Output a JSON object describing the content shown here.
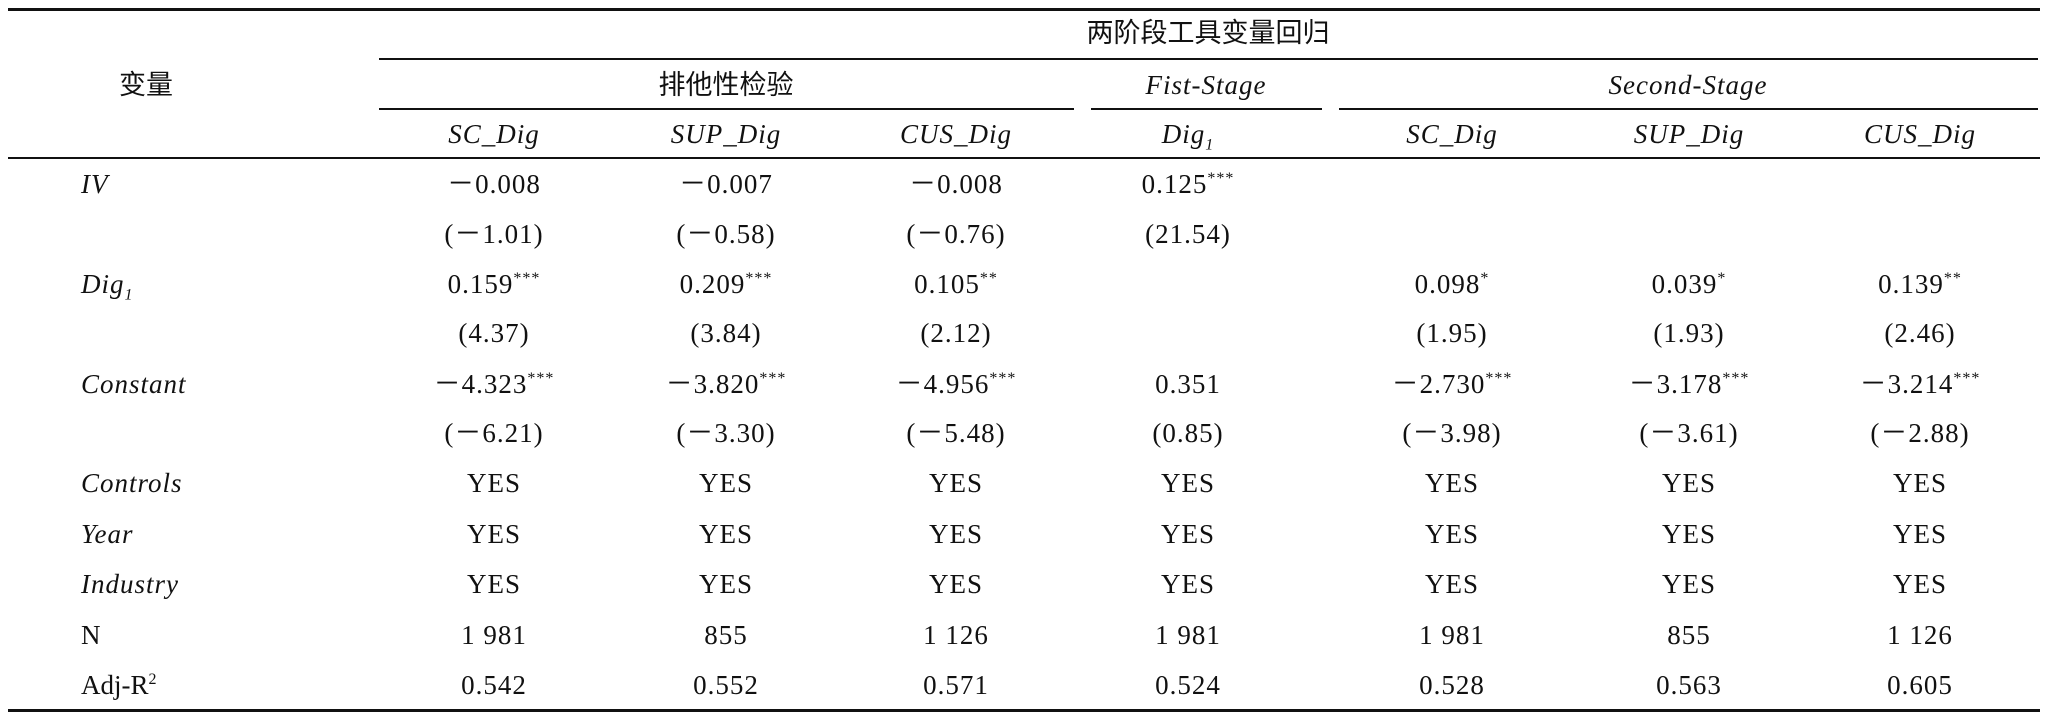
{
  "table": {
    "group_title": "两阶段工具变量回归",
    "row_header": "变量",
    "subgroups": [
      "排他性检验",
      "Fist-Stage",
      "Second-Stage"
    ],
    "columns": [
      "SC_Dig",
      "SUP_Dig",
      "CUS_Dig",
      {
        "text": "Dig",
        "sub": "1"
      },
      "SC_Dig",
      "SUP_Dig",
      "CUS_Dig"
    ],
    "rows": [
      {
        "label": "IV",
        "cells": [
          "－0.008",
          "－0.007",
          "－0.008",
          {
            "text": "0.125",
            "stars": "***"
          },
          null,
          null,
          null
        ]
      },
      {
        "label": null,
        "cells": [
          "(－1.01)",
          "(－0.58)",
          "(－0.76)",
          "(21.54)",
          null,
          null,
          null
        ]
      },
      {
        "label": {
          "text": "Dig",
          "sub": "1"
        },
        "cells": [
          {
            "text": "0.159",
            "stars": "***"
          },
          {
            "text": "0.209",
            "stars": "***"
          },
          {
            "text": "0.105",
            "stars": "**"
          },
          null,
          {
            "text": "0.098",
            "stars": "*"
          },
          {
            "text": "0.039",
            "stars": "*"
          },
          {
            "text": "0.139",
            "stars": "**"
          }
        ]
      },
      {
        "label": null,
        "cells": [
          "(4.37)",
          "(3.84)",
          "(2.12)",
          null,
          "(1.95)",
          "(1.93)",
          "(2.46)"
        ]
      },
      {
        "label": "Constant",
        "cells": [
          {
            "text": "－4.323",
            "stars": "***"
          },
          {
            "text": "－3.820",
            "stars": "***"
          },
          {
            "text": "－4.956",
            "stars": "***"
          },
          "0.351",
          {
            "text": "－2.730",
            "stars": "***"
          },
          {
            "text": "－3.178",
            "stars": "***"
          },
          {
            "text": "－3.214",
            "stars": "***"
          }
        ]
      },
      {
        "label": null,
        "cells": [
          "(－6.21)",
          "(－3.30)",
          "(－5.48)",
          "(0.85)",
          "(－3.98)",
          "(－3.61)",
          "(－2.88)"
        ]
      },
      {
        "label": "Controls",
        "cells": [
          "YES",
          "YES",
          "YES",
          "YES",
          "YES",
          "YES",
          "YES"
        ]
      },
      {
        "label": "Year",
        "cells": [
          "YES",
          "YES",
          "YES",
          "YES",
          "YES",
          "YES",
          "YES"
        ]
      },
      {
        "label": "Industry",
        "cells": [
          "YES",
          "YES",
          "YES",
          "YES",
          "YES",
          "YES",
          "YES"
        ]
      },
      {
        "label": "N",
        "cells": [
          "1 981",
          "855",
          "1 126",
          "1 981",
          "1 981",
          "855",
          "1 126"
        ]
      },
      {
        "label": {
          "text": "Adj-R",
          "sup": "2"
        },
        "cells": [
          "0.542",
          "0.552",
          "0.571",
          "0.524",
          "0.528",
          "0.563",
          "0.605"
        ]
      }
    ]
  }
}
